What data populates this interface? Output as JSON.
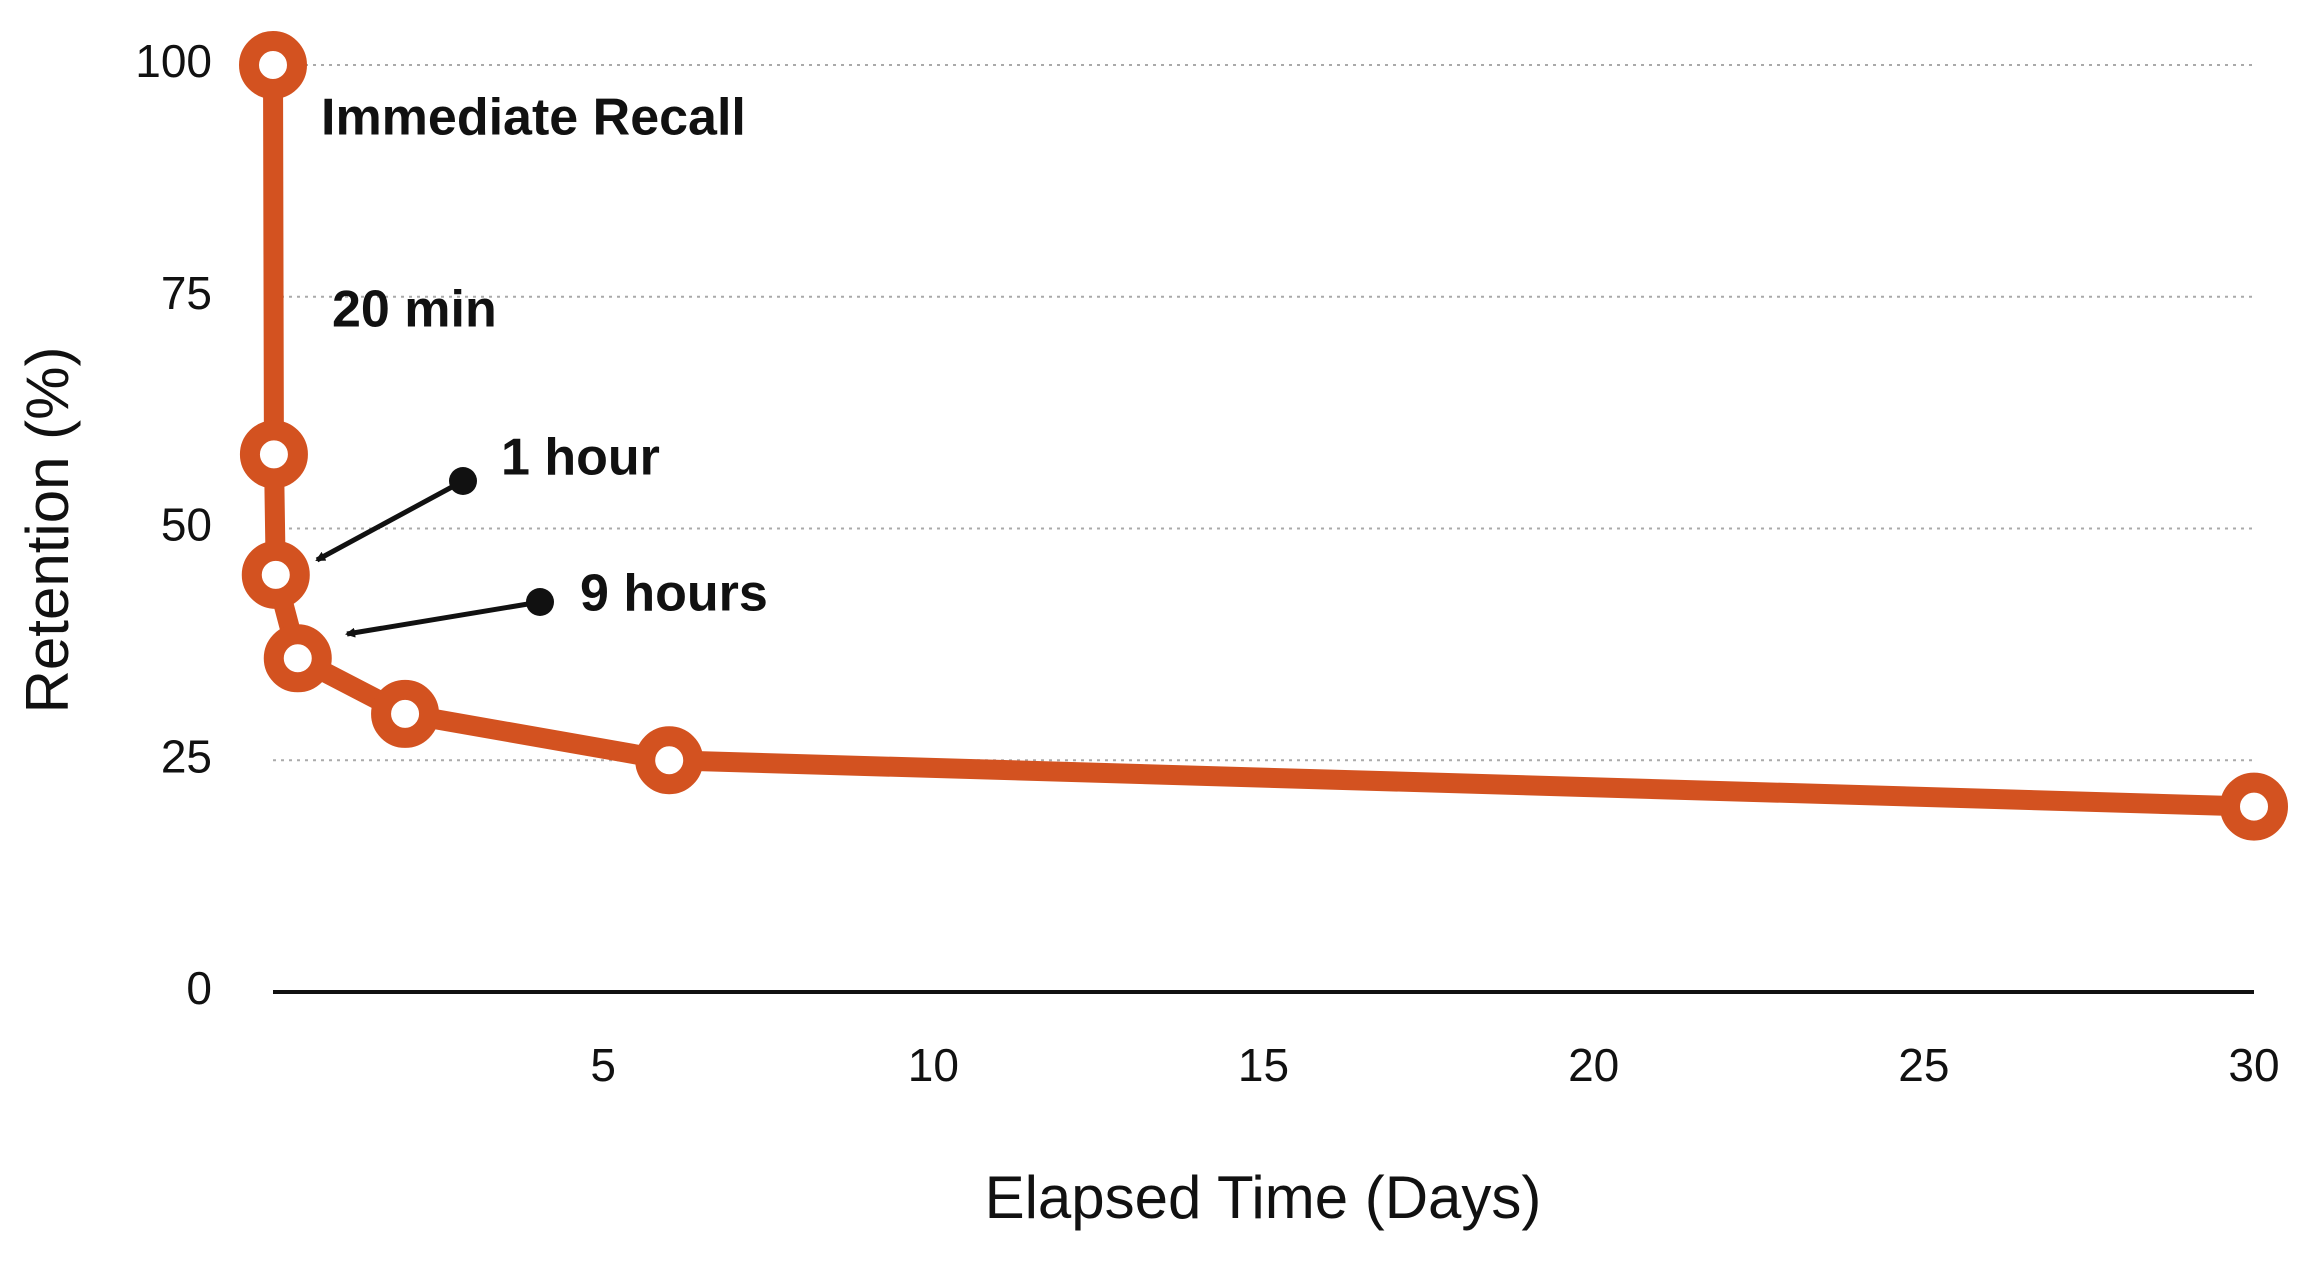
{
  "chart_data": {
    "type": "line",
    "x_label": "Elapsed Time (Days)",
    "y_label": "Retention (%)",
    "x": [
      0,
      0.014,
      0.042,
      0.375,
      2,
      6,
      30
    ],
    "values": [
      100,
      58,
      45,
      36,
      30,
      25,
      20
    ],
    "color": "#d35220",
    "xlim": [
      0,
      30
    ],
    "xticks": [
      5,
      10,
      15,
      20,
      25,
      30
    ],
    "ylim": [
      0,
      100
    ],
    "yticks": [
      0,
      25,
      50,
      75,
      100
    ],
    "grid": true,
    "annotations": [
      "Immediate Recall",
      "20 min",
      "1 hour",
      "9 hours"
    ]
  }
}
